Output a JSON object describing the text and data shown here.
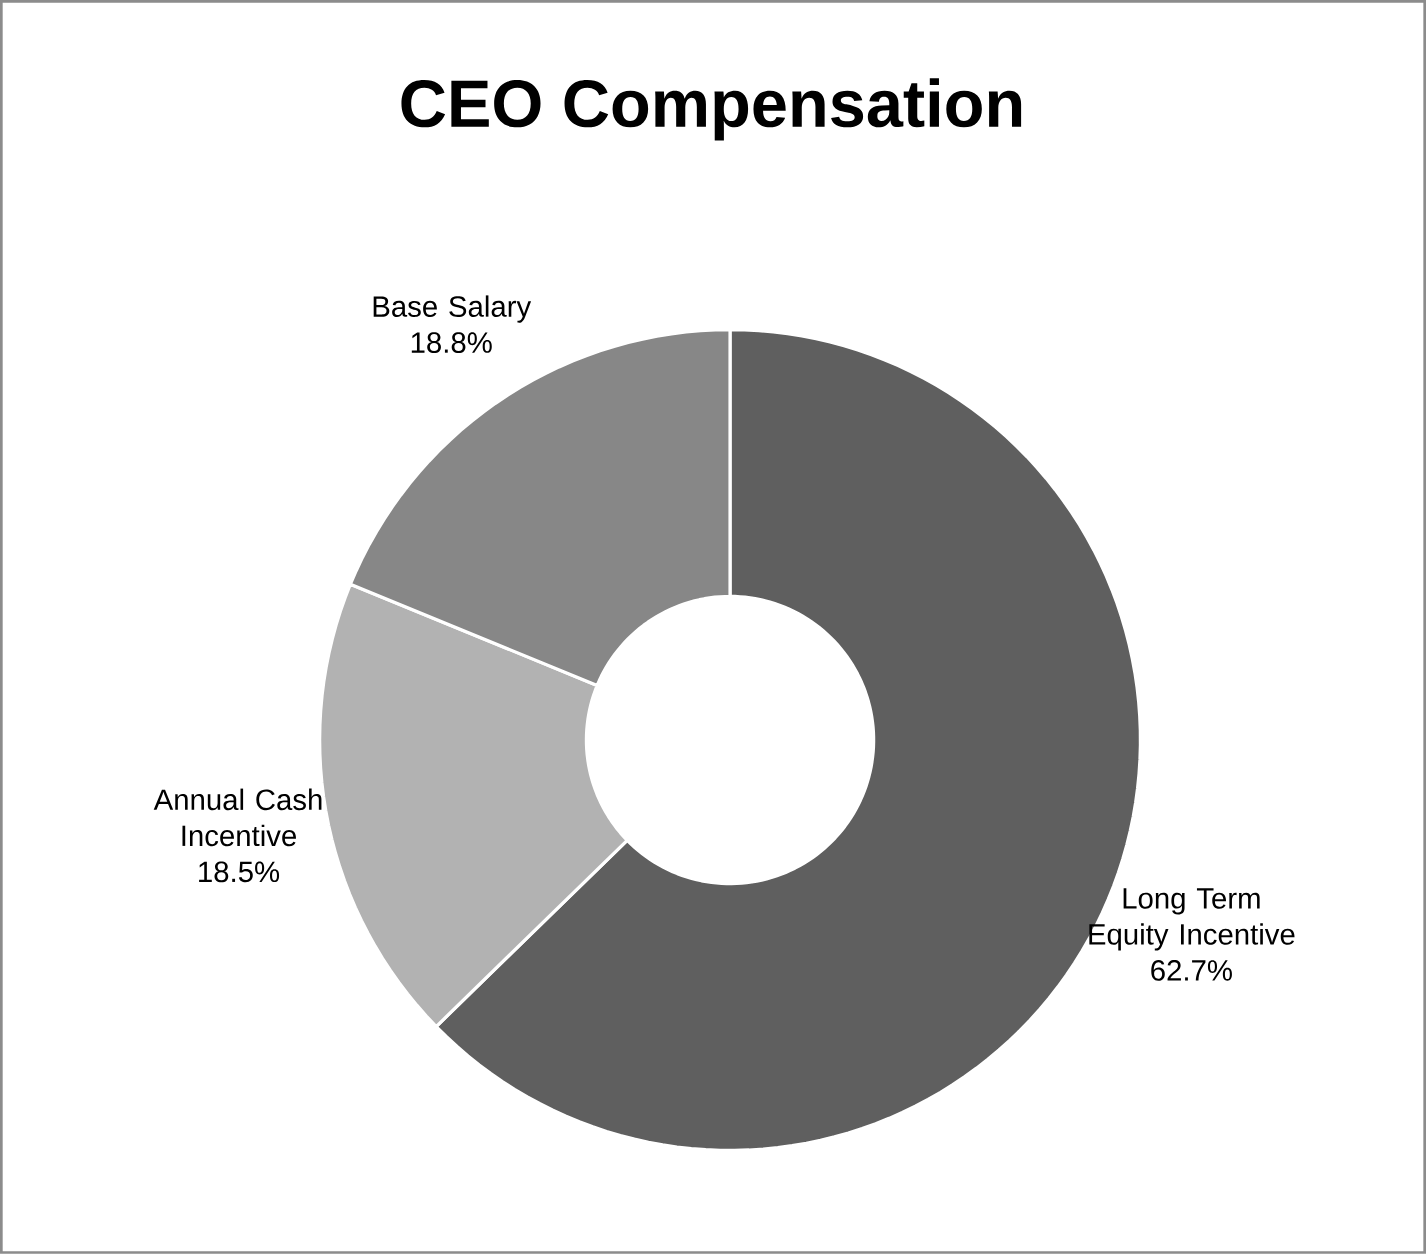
{
  "chart_data": {
    "type": "donut",
    "title": "CEO Compensation",
    "categories": [
      "Long Term Equity Incentive",
      "Annual Cash Incentive",
      "Base Salary"
    ],
    "values": [
      62.7,
      18.5,
      18.8
    ],
    "value_labels": [
      "62.7%",
      "18.5%",
      "18.8%"
    ],
    "colors": [
      "#5f5f5f",
      "#b2b2b2",
      "#878787"
    ],
    "legend": false
  }
}
